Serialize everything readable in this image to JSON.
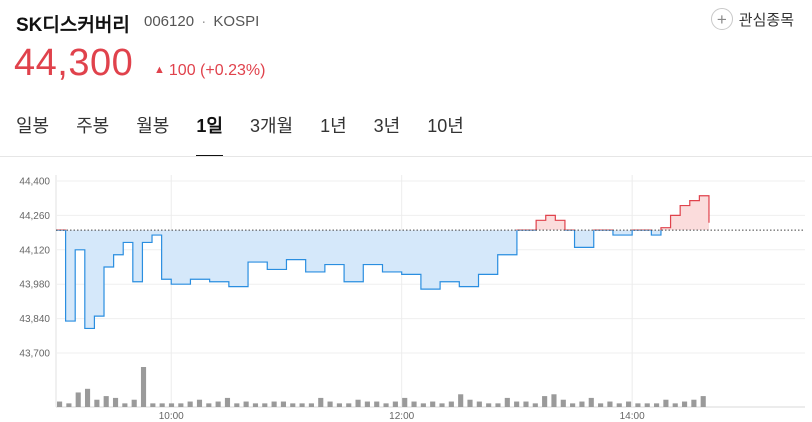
{
  "stock": {
    "name": "SK디스커버리",
    "code": "006120",
    "separator": "·",
    "market": "KOSPI",
    "price": "44,300",
    "change_arrow": "▲",
    "change_value": "100",
    "change_pct": "(+0.23%)"
  },
  "watchlist": {
    "label": "관심종목",
    "icon": "plus-circle-icon"
  },
  "tabs": [
    {
      "label": "일봉",
      "active": false
    },
    {
      "label": "주봉",
      "active": false
    },
    {
      "label": "월봉",
      "active": false
    },
    {
      "label": "1일",
      "active": true
    },
    {
      "label": "3개월",
      "active": false
    },
    {
      "label": "1년",
      "active": false
    },
    {
      "label": "3년",
      "active": false
    },
    {
      "label": "10년",
      "active": false
    }
  ],
  "colors": {
    "up": "#e0424c",
    "down_line": "#2a8ee0",
    "down_fill": "#d5e8fa",
    "up_fill": "#fbdcdc",
    "volume": "#9a9a9a"
  },
  "chart_data": {
    "type": "area",
    "title": "",
    "xlabel": "",
    "ylabel": "",
    "reference_price": 44200,
    "ylim": [
      43700,
      44400
    ],
    "yticks": [
      "44,400",
      "44,260",
      "44,120",
      "43,980",
      "43,840",
      "43,700"
    ],
    "yticks_values": [
      44400,
      44260,
      44120,
      43980,
      43840,
      43700
    ],
    "xlim": [
      "09:00",
      "15:30"
    ],
    "xticks": [
      "10:00",
      "12:00",
      "14:00"
    ],
    "grid": true,
    "series": [
      {
        "x": [
          "09:00",
          "09:05",
          "09:10",
          "09:15",
          "09:20",
          "09:25",
          "09:30",
          "09:35",
          "09:40",
          "09:45",
          "09:50",
          "09:55",
          "10:00",
          "10:10",
          "10:20",
          "10:30",
          "10:40",
          "10:50",
          "11:00",
          "11:10",
          "11:20",
          "11:30",
          "11:40",
          "11:50",
          "12:00",
          "12:10",
          "12:20",
          "12:30",
          "12:40",
          "12:50",
          "13:00",
          "13:05",
          "13:10",
          "13:15",
          "13:20",
          "13:25",
          "13:30",
          "13:40",
          "13:50",
          "14:00",
          "14:10",
          "14:15",
          "14:20",
          "14:25",
          "14:30",
          "14:35",
          "14:40"
        ],
        "values": [
          44200,
          43830,
          44120,
          43800,
          43850,
          44050,
          44100,
          44150,
          43990,
          44150,
          44180,
          44000,
          43980,
          44000,
          43990,
          43970,
          44070,
          44040,
          44080,
          44030,
          44060,
          43990,
          44060,
          44030,
          44020,
          43960,
          43990,
          43970,
          44020,
          44100,
          44200,
          44200,
          44240,
          44260,
          44240,
          44200,
          44130,
          44200,
          44180,
          44200,
          44180,
          44210,
          44260,
          44300,
          44320,
          44340,
          44230
        ]
      }
    ],
    "volume": [
      3,
      2,
      8,
      10,
      4,
      6,
      5,
      2,
      4,
      22,
      2,
      2,
      2,
      2,
      3,
      4,
      2,
      3,
      5,
      2,
      3,
      2,
      2,
      3,
      3,
      2,
      2,
      2,
      5,
      3,
      2,
      2,
      4,
      3,
      3,
      2,
      3,
      5,
      3,
      2,
      3,
      2,
      3,
      7,
      4,
      3,
      2,
      2,
      5,
      3,
      3,
      2,
      6,
      7,
      4,
      2,
      3,
      5,
      2,
      3,
      2,
      3,
      2,
      2,
      2,
      4,
      2,
      3,
      4,
      6
    ]
  }
}
